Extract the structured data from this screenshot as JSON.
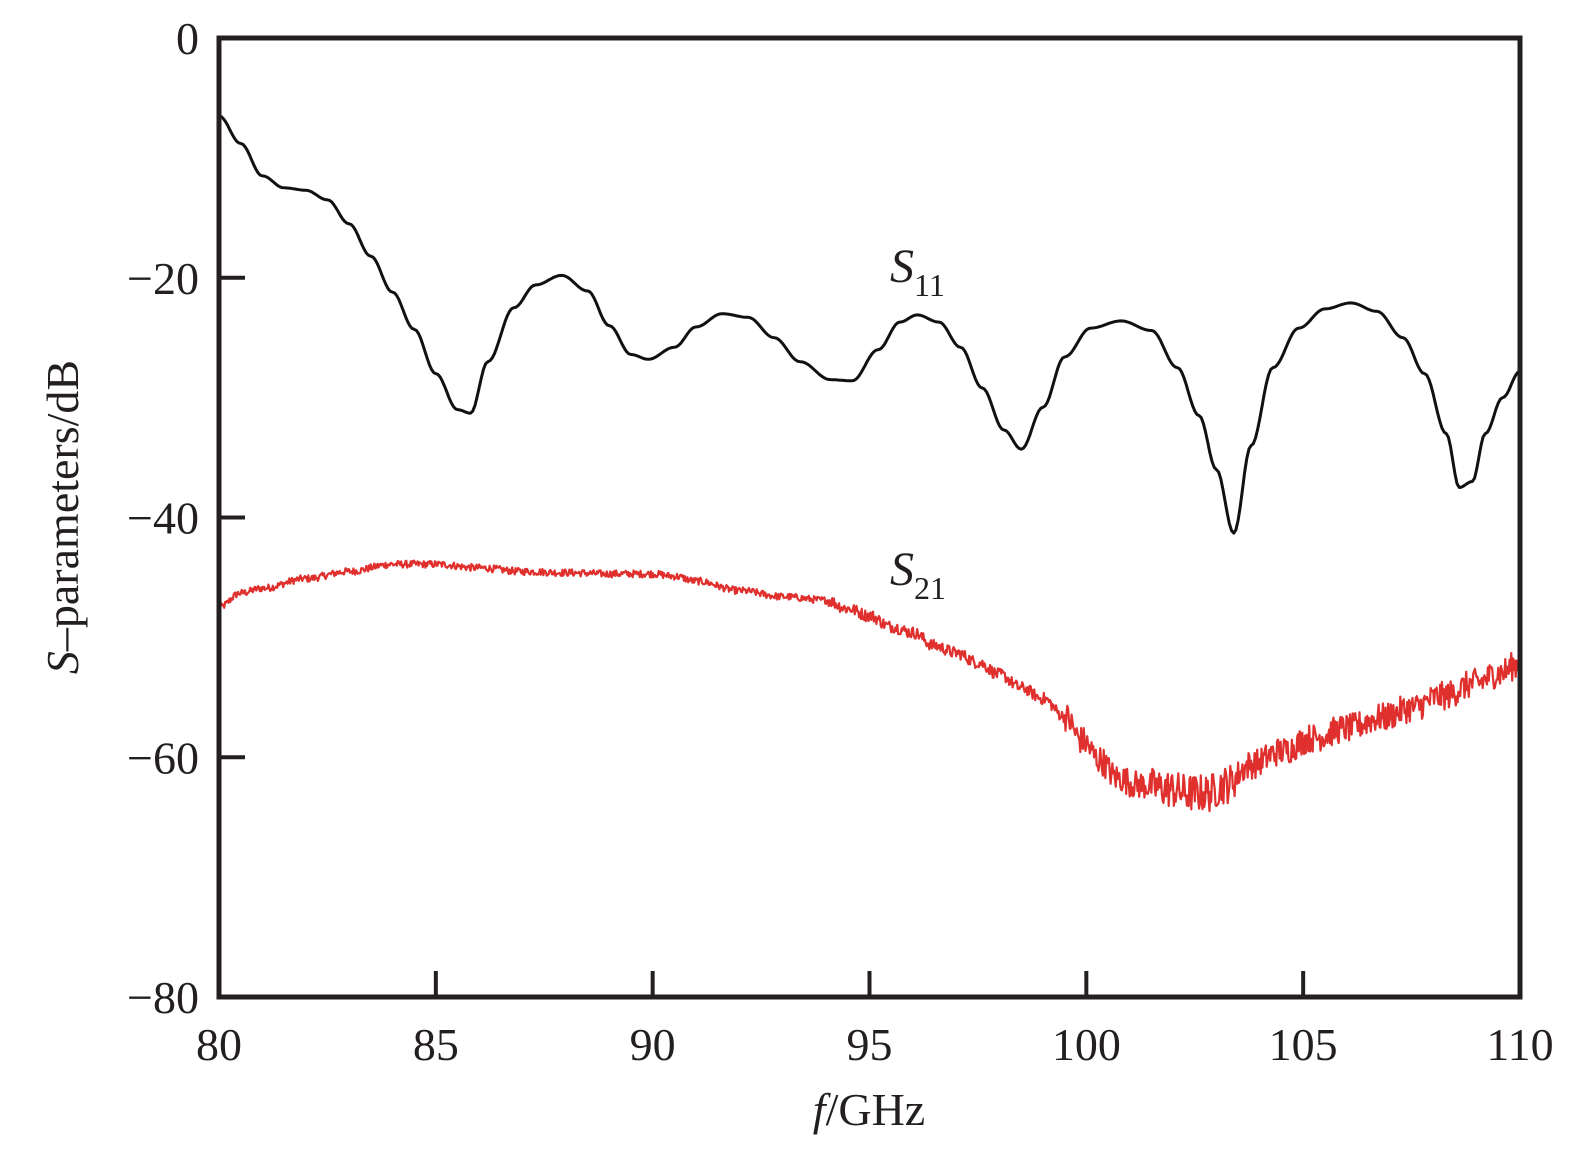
{
  "chart_data": {
    "type": "line",
    "xlabel": {
      "var": "f",
      "unit": "/GHz"
    },
    "ylabel": {
      "var": "S",
      "unit": "–parameters/dB"
    },
    "xlim": [
      80,
      110
    ],
    "ylim": [
      -80,
      0
    ],
    "xticks": [
      80,
      85,
      90,
      95,
      100,
      105,
      110
    ],
    "yticks": [
      0,
      -20,
      -40,
      -60,
      -80
    ],
    "ytick_labels": [
      "0",
      "−20",
      "−40",
      "−60",
      "−80"
    ],
    "xtick_labels": [
      "80",
      "85",
      "90",
      "95",
      "100",
      "105",
      "110"
    ],
    "grid": false,
    "series": [
      {
        "name": "S11",
        "label": {
          "main": "S",
          "sub": "11"
        },
        "color": "#111111",
        "x": [
          80,
          80.5,
          81,
          81.5,
          82,
          82.5,
          83,
          83.5,
          84,
          84.5,
          85,
          85.5,
          85.8,
          86.2,
          86.8,
          87.3,
          87.9,
          88.5,
          89,
          89.5,
          89.9,
          90.5,
          91,
          91.6,
          92.2,
          92.8,
          93.4,
          94.1,
          94.6,
          95.2,
          95.7,
          96.1,
          96.6,
          97.1,
          97.6,
          98.1,
          98.5,
          99,
          99.5,
          100.1,
          100.8,
          101.5,
          102.1,
          102.6,
          103,
          103.4,
          103.8,
          104.3,
          104.9,
          105.5,
          106.1,
          106.7,
          107.3,
          107.8,
          108.3,
          108.6,
          108.9,
          109.2,
          109.6,
          110
        ],
        "y": [
          -6.5,
          -8.8,
          -11.5,
          -12.5,
          -12.7,
          -13.5,
          -15.5,
          -18.2,
          -21.2,
          -24.3,
          -28,
          -31,
          -31.3,
          -27,
          -22.5,
          -20.6,
          -19.8,
          -21.1,
          -24,
          -26.4,
          -26.8,
          -25.8,
          -24.1,
          -23,
          -23.3,
          -25,
          -27,
          -28.5,
          -28.6,
          -26,
          -23.7,
          -23.1,
          -23.7,
          -25.8,
          -29.2,
          -32.7,
          -34.3,
          -30.8,
          -26.6,
          -24.2,
          -23.6,
          -24.4,
          -27.5,
          -31.5,
          -36,
          -41.3,
          -34,
          -27.5,
          -24.2,
          -22.6,
          -22.1,
          -22.8,
          -25,
          -28,
          -33,
          -37.5,
          -37,
          -33,
          -30,
          -27.8
        ]
      },
      {
        "name": "S21",
        "label": {
          "main": "S",
          "sub": "21"
        },
        "color": "#e0302e",
        "noisy": true,
        "x": [
          80,
          80.5,
          81,
          82,
          83,
          84,
          85,
          86,
          87,
          88,
          89,
          90,
          90.5,
          91,
          92,
          93,
          94,
          94.5,
          95,
          95.5,
          96,
          96.5,
          97,
          97.5,
          98,
          98.5,
          99,
          99.5,
          99.9,
          100.3,
          100.7,
          101.2,
          101.8,
          102.4,
          102.8,
          103.2,
          103.8,
          104.5,
          105.2,
          106,
          106.8,
          107.5,
          108.2,
          109,
          109.5,
          110
        ],
        "y": [
          -47.5,
          -46.3,
          -45.9,
          -45.1,
          -44.5,
          -43.9,
          -43.9,
          -44.2,
          -44.5,
          -44.6,
          -44.7,
          -44.7,
          -44.9,
          -45.3,
          -46.1,
          -46.6,
          -46.9,
          -47.6,
          -48.2,
          -49.1,
          -49.6,
          -50.7,
          -51.3,
          -52.1,
          -53.1,
          -54.2,
          -55.1,
          -56.6,
          -58.6,
          -60.2,
          -61.7,
          -62.3,
          -62.6,
          -63,
          -63,
          -62.3,
          -60.6,
          -59.5,
          -58.4,
          -57.6,
          -56.7,
          -55.9,
          -54.9,
          -53.8,
          -53,
          -52.2
        ]
      }
    ]
  }
}
